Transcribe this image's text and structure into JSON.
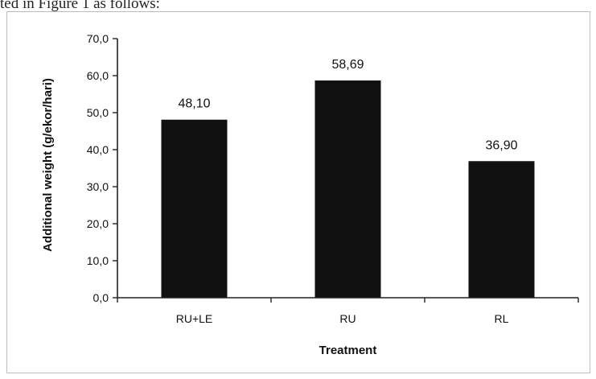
{
  "document": {
    "caption_text": "ted in Figure 1 as follows:"
  },
  "chart_data": {
    "type": "bar",
    "categories": [
      "RU+LE",
      "RU",
      "RL"
    ],
    "values": [
      48.1,
      58.69,
      36.9
    ],
    "value_labels": [
      "48,10",
      "58,69",
      "36,90"
    ],
    "title": "",
    "xlabel": "Treatment",
    "ylabel": "Additional weight (g/ekor/hari)",
    "ylim": [
      0,
      70
    ],
    "yticks": [
      0,
      10,
      20,
      30,
      40,
      50,
      60,
      70
    ],
    "ytick_labels": [
      "0,0",
      "10,0",
      "20,0",
      "30,0",
      "40,0",
      "50,0",
      "60,0",
      "70,0"
    ],
    "grid": false,
    "legend": "none",
    "colors": {
      "bar": "#111111",
      "axis": "#222222"
    }
  }
}
